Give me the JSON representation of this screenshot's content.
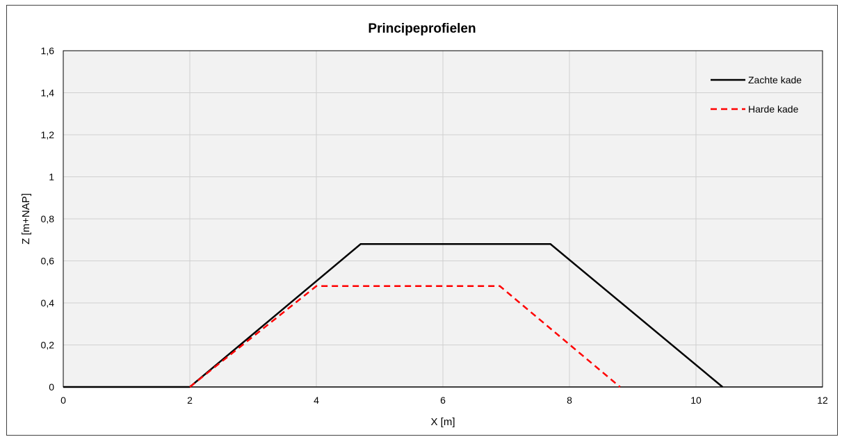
{
  "chart_data": {
    "type": "line",
    "title": "Principeprofielen",
    "xlabel": "X [m]",
    "ylabel": "Z [m+NAP]",
    "xlim": [
      0,
      12
    ],
    "ylim": [
      0,
      1.6
    ],
    "x_ticks": [
      "0",
      "2",
      "4",
      "6",
      "8",
      "10",
      "12"
    ],
    "y_ticks": [
      "0",
      "0,2",
      "0,4",
      "0,6",
      "0,8",
      "1",
      "1,2",
      "1,4",
      "1,6"
    ],
    "grid": true,
    "legend_position": "top-right",
    "series": [
      {
        "name": "Zachte kade",
        "color": "#000000",
        "style": "solid",
        "x": [
          0,
          2,
          4.7,
          7.7,
          10.42
        ],
        "y": [
          0,
          0,
          0.68,
          0.68,
          0
        ]
      },
      {
        "name": "Harde kade",
        "color": "#ff0000",
        "style": "dashed",
        "x": [
          2,
          4,
          6.9,
          8.8
        ],
        "y": [
          0,
          0.48,
          0.48,
          0
        ]
      }
    ]
  }
}
